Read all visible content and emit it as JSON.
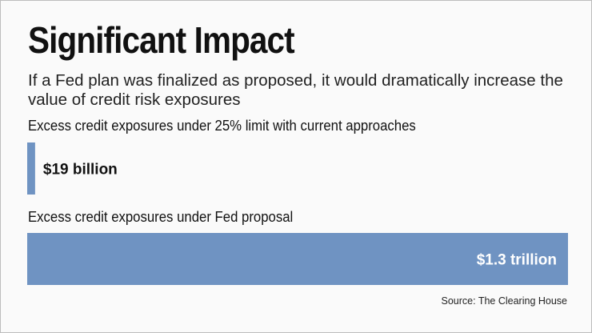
{
  "header": {
    "title": "Significant Impact",
    "subtitle": "If a Fed plan was finalized as proposed, it would dramatically increase the value of credit risk exposures"
  },
  "chart_data": {
    "type": "bar",
    "orientation": "horizontal",
    "categories": [
      "Excess credit exposures under 25% limit with current approaches",
      "Excess credit exposures under Fed proposal"
    ],
    "values": [
      19,
      1300
    ],
    "unit": "billion USD",
    "data_labels": [
      "$19 billion",
      "$1.3 trillion"
    ],
    "bar_color": "#6f93c2",
    "grid": false,
    "legend": "none"
  },
  "footer": {
    "source": "Source: The Clearing House"
  }
}
